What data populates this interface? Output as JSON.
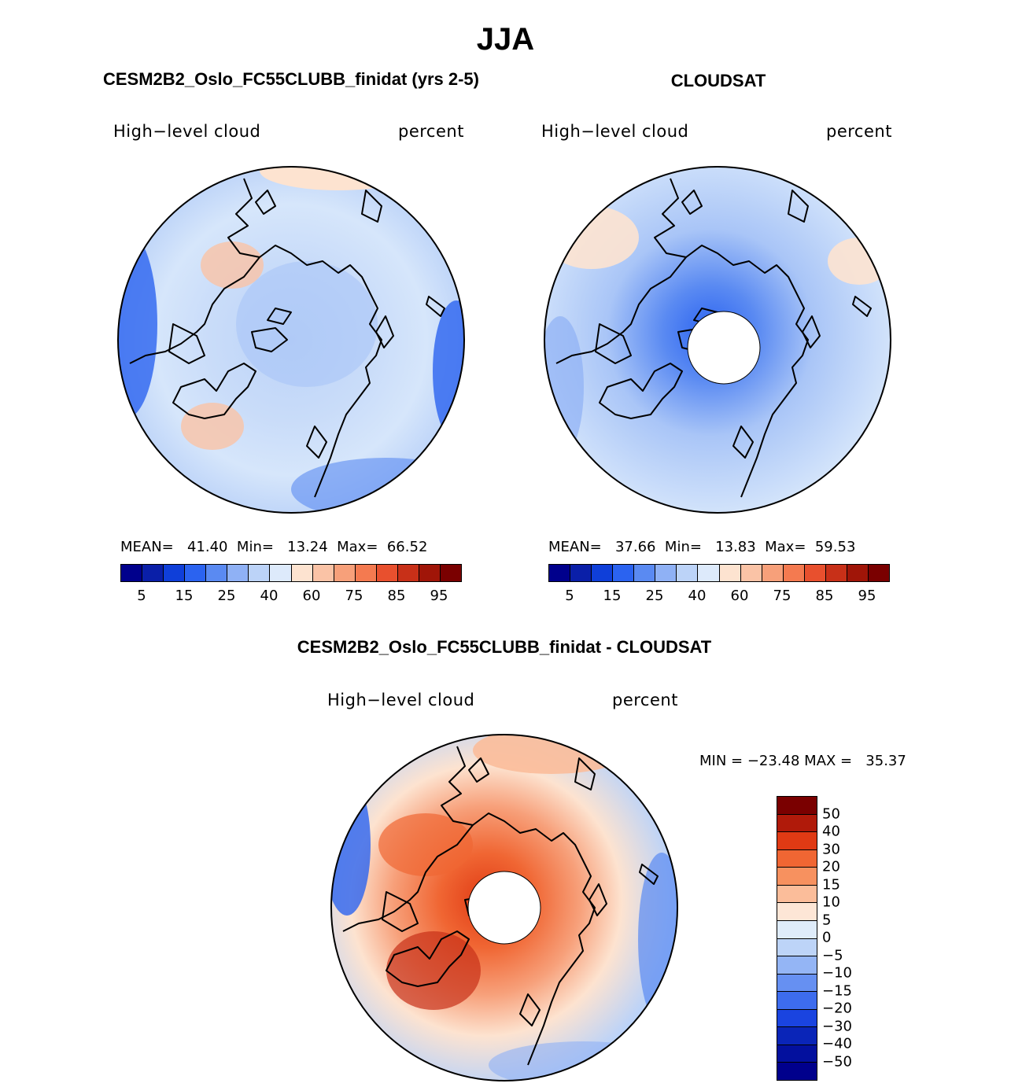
{
  "title": "JJA",
  "variable": "High−level cloud",
  "units": "percent",
  "panels": [
    {
      "title": "CESM2B2_Oslo_FC55CLUBB_finidat (yrs 2-5)",
      "mean_label": "MEAN=",
      "mean": "41.40",
      "min_label": "Min=",
      "min": "13.24",
      "max_label": "Max=",
      "max": "66.52",
      "has_hole": false
    },
    {
      "title": "CLOUDSAT",
      "mean_label": "MEAN=",
      "mean": "37.66",
      "min_label": "Min=",
      "min": "13.83",
      "max_label": "Max=",
      "max": "59.53",
      "has_hole": true
    }
  ],
  "diff": {
    "title": "CESM2B2_Oslo_FC55CLUBB_finidat - CLOUDSAT",
    "minmax": "MIN = −23.48 MAX =   35.37"
  },
  "abs_colorbar": {
    "colors": [
      "#00008c",
      "#0a1fa8",
      "#0f3fd9",
      "#2b63f0",
      "#5a8af2",
      "#8fb1f5",
      "#bcd3f8",
      "#ddeafb",
      "#fde3d0",
      "#fac3a6",
      "#f7a07a",
      "#f47a50",
      "#e8502e",
      "#c83018",
      "#a01508",
      "#7a0000"
    ],
    "tick_labels": [
      "5",
      "15",
      "25",
      "40",
      "60",
      "75",
      "85",
      "95"
    ]
  },
  "diff_colorbar": {
    "colors": [
      "#7a0000",
      "#b01a0a",
      "#e03a14",
      "#f06633",
      "#f7915f",
      "#fbbd9a",
      "#fde6d6",
      "#dfecfa",
      "#bdd4f8",
      "#94b5f5",
      "#6690f2",
      "#3d6cee",
      "#1a44e0",
      "#0a25b8",
      "#03109e",
      "#00008c"
    ],
    "labels": [
      "50",
      "40",
      "30",
      "20",
      "15",
      "10",
      "5",
      "0",
      "−5",
      "−10",
      "−15",
      "−20",
      "−30",
      "−40",
      "−50"
    ]
  }
}
